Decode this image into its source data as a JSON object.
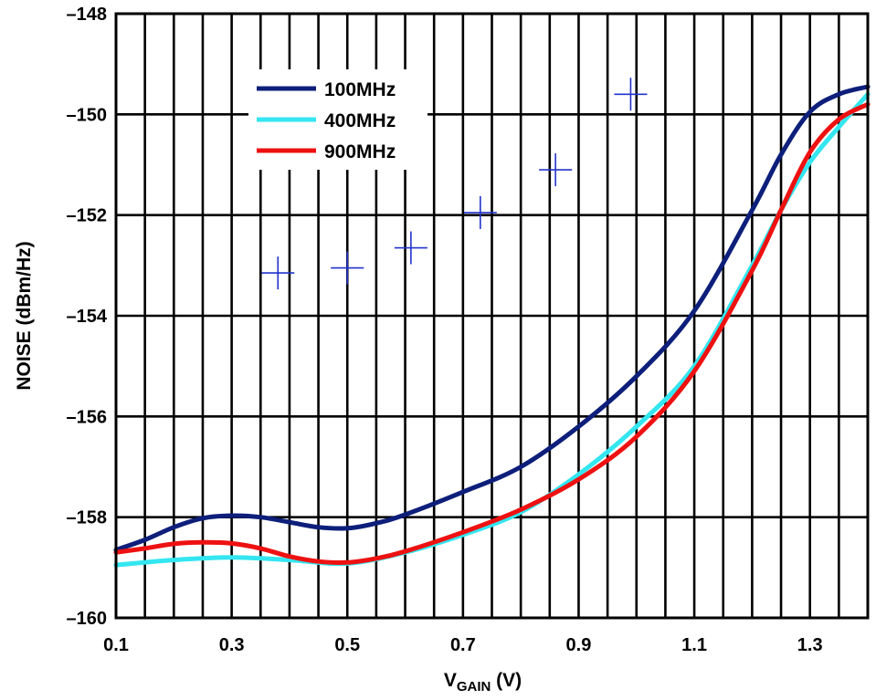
{
  "chart_data": {
    "type": "line",
    "title": "",
    "xlabel_main": "V",
    "xlabel_sub": "GAIN",
    "xlabel_unit": " (V)",
    "ylabel": "NOISE (dBm/Hz)",
    "xlim": [
      0.1,
      1.4
    ],
    "ylim": [
      -160,
      -148
    ],
    "grid": true,
    "legend_position": "top-left",
    "x_ticks": [
      0.1,
      0.3,
      0.5,
      0.7,
      0.9,
      1.1,
      1.3
    ],
    "x_tick_labels": [
      "0.1",
      "0.3",
      "0.5",
      "0.7",
      "0.9",
      "1.1",
      "1.3"
    ],
    "y_ticks": [
      -160,
      -158,
      -156,
      -154,
      -152,
      -150,
      -148
    ],
    "y_tick_labels": [
      "–160",
      "–158",
      "–156",
      "–154",
      "–152",
      "–150",
      "–148"
    ],
    "series": [
      {
        "name": "100MHz",
        "color": "#0d1f7a",
        "x": [
          0.1,
          0.15,
          0.2,
          0.25,
          0.3,
          0.35,
          0.4,
          0.45,
          0.5,
          0.55,
          0.6,
          0.7,
          0.8,
          0.9,
          1.0,
          1.1,
          1.2,
          1.25,
          1.3,
          1.35,
          1.4
        ],
        "y": [
          -158.65,
          -158.45,
          -158.2,
          -158.02,
          -157.97,
          -158.0,
          -158.1,
          -158.2,
          -158.22,
          -158.12,
          -157.95,
          -157.5,
          -157.0,
          -156.2,
          -155.2,
          -153.9,
          -151.9,
          -150.8,
          -149.95,
          -149.6,
          -149.45
        ]
      },
      {
        "name": "400MHz",
        "color": "#33e6f0",
        "x": [
          0.1,
          0.2,
          0.3,
          0.4,
          0.5,
          0.6,
          0.7,
          0.8,
          0.9,
          1.0,
          1.1,
          1.2,
          1.25,
          1.3,
          1.35,
          1.4
        ],
        "y": [
          -158.95,
          -158.85,
          -158.8,
          -158.85,
          -158.92,
          -158.7,
          -158.35,
          -157.9,
          -157.15,
          -156.2,
          -155.0,
          -153.0,
          -151.9,
          -150.95,
          -150.25,
          -149.6
        ]
      },
      {
        "name": "900MHz",
        "color": "#ee1111",
        "x": [
          0.1,
          0.15,
          0.2,
          0.25,
          0.3,
          0.35,
          0.4,
          0.45,
          0.5,
          0.55,
          0.6,
          0.7,
          0.8,
          0.9,
          1.0,
          1.1,
          1.2,
          1.25,
          1.3,
          1.35,
          1.4
        ],
        "y": [
          -158.7,
          -158.62,
          -158.53,
          -158.5,
          -158.52,
          -158.62,
          -158.78,
          -158.88,
          -158.9,
          -158.82,
          -158.68,
          -158.3,
          -157.85,
          -157.25,
          -156.4,
          -155.1,
          -153.1,
          -151.9,
          -150.75,
          -150.1,
          -149.8
        ]
      }
    ],
    "markers": [
      {
        "x": 0.38,
        "y": -153.15
      },
      {
        "x": 0.5,
        "y": -153.05
      },
      {
        "x": 0.61,
        "y": -152.65
      },
      {
        "x": 0.73,
        "y": -151.95
      },
      {
        "x": 0.86,
        "y": -151.1
      },
      {
        "x": 0.99,
        "y": -149.6
      }
    ],
    "marker_color": "#2233cc"
  }
}
